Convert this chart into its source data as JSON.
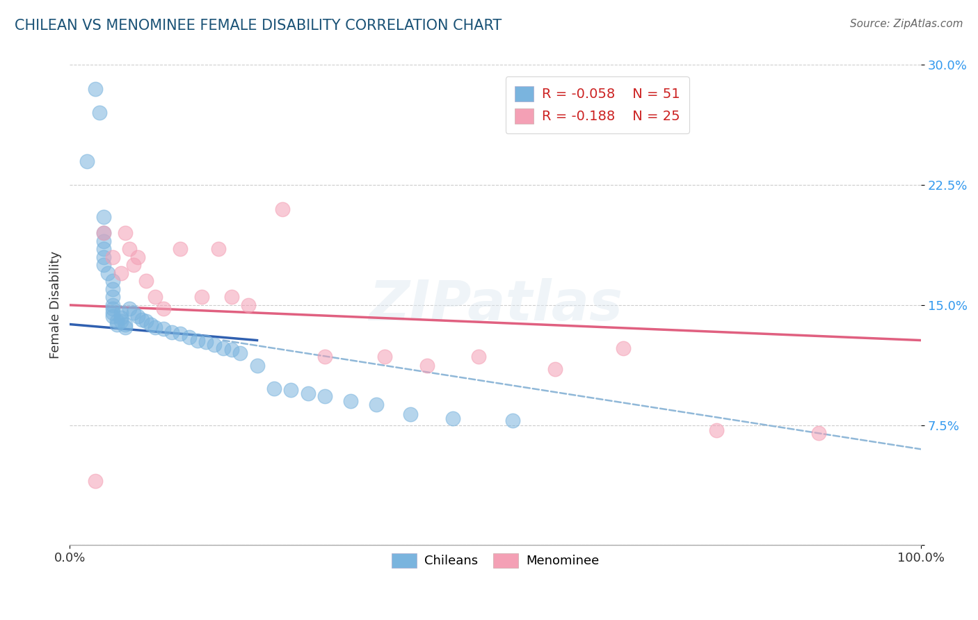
{
  "title": "CHILEAN VS MENOMINEE FEMALE DISABILITY CORRELATION CHART",
  "source": "Source: ZipAtlas.com",
  "ylabel": "Female Disability",
  "xlim": [
    0,
    1
  ],
  "ylim": [
    0,
    0.3
  ],
  "yticks": [
    0.0,
    0.075,
    0.15,
    0.225,
    0.3
  ],
  "ytick_labels": [
    "",
    "7.5%",
    "15.0%",
    "22.5%",
    "30.0%"
  ],
  "xtick_labels": [
    "0.0%",
    "100.0%"
  ],
  "legend_r1": "R = -0.058",
  "legend_n1": "N = 51",
  "legend_r2": "R = -0.188",
  "legend_n2": "N = 25",
  "color_blue": "#7ab4de",
  "color_pink": "#f4a0b5",
  "color_blue_line": "#3060b0",
  "color_pink_line": "#e06080",
  "color_dashed": "#90b8d8",
  "title_color": "#1a5276",
  "source_color": "#666666",
  "background": "#ffffff",
  "chilean_x": [
    0.02,
    0.03,
    0.035,
    0.04,
    0.04,
    0.04,
    0.04,
    0.04,
    0.04,
    0.045,
    0.05,
    0.05,
    0.05,
    0.05,
    0.05,
    0.05,
    0.05,
    0.055,
    0.055,
    0.06,
    0.06,
    0.06,
    0.065,
    0.065,
    0.07,
    0.075,
    0.08,
    0.085,
    0.09,
    0.095,
    0.1,
    0.11,
    0.12,
    0.13,
    0.14,
    0.15,
    0.16,
    0.17,
    0.18,
    0.19,
    0.2,
    0.22,
    0.24,
    0.26,
    0.28,
    0.3,
    0.33,
    0.36,
    0.4,
    0.45,
    0.52
  ],
  "chilean_y": [
    0.24,
    0.285,
    0.27,
    0.205,
    0.195,
    0.19,
    0.185,
    0.18,
    0.175,
    0.17,
    0.165,
    0.16,
    0.155,
    0.15,
    0.148,
    0.145,
    0.143,
    0.14,
    0.138,
    0.145,
    0.142,
    0.14,
    0.138,
    0.136,
    0.148,
    0.145,
    0.143,
    0.141,
    0.14,
    0.138,
    0.136,
    0.135,
    0.133,
    0.132,
    0.13,
    0.128,
    0.127,
    0.125,
    0.123,
    0.122,
    0.12,
    0.112,
    0.098,
    0.097,
    0.095,
    0.093,
    0.09,
    0.088,
    0.082,
    0.079,
    0.078
  ],
  "menominee_x": [
    0.03,
    0.04,
    0.05,
    0.06,
    0.065,
    0.07,
    0.075,
    0.08,
    0.09,
    0.1,
    0.11,
    0.13,
    0.155,
    0.175,
    0.19,
    0.21,
    0.25,
    0.3,
    0.37,
    0.42,
    0.48,
    0.57,
    0.65,
    0.76,
    0.88
  ],
  "menominee_y": [
    0.04,
    0.195,
    0.18,
    0.17,
    0.195,
    0.185,
    0.175,
    0.18,
    0.165,
    0.155,
    0.148,
    0.185,
    0.155,
    0.185,
    0.155,
    0.15,
    0.21,
    0.118,
    0.118,
    0.112,
    0.118,
    0.11,
    0.123,
    0.072,
    0.07
  ],
  "blue_line_x": [
    0.0,
    0.22
  ],
  "blue_line_start_y": 0.138,
  "blue_line_end_y": 0.128,
  "pink_line_x": [
    0.0,
    1.0
  ],
  "pink_line_start_y": 0.15,
  "pink_line_end_y": 0.128,
  "dash_line_x": [
    0.18,
    1.0
  ],
  "dash_line_start_y": 0.128,
  "dash_line_end_y": 0.06
}
